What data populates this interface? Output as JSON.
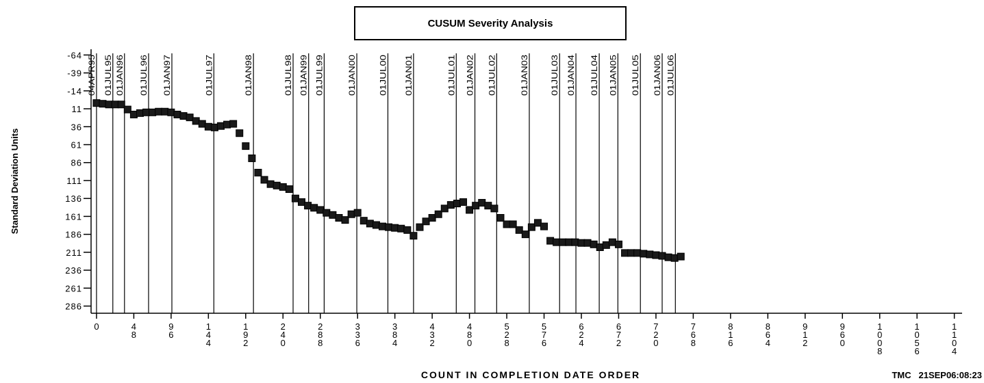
{
  "chart_data": {
    "type": "scatter",
    "title": "CUSUM Severity Analysis",
    "xlabel": "COUNT IN COMPLETION DATE ORDER",
    "ylabel": "Standard Deviation Units",
    "footnote": "TMC   21SEP06:08:23",
    "color": "#1a1a1a",
    "yreverse": true,
    "xlim": [
      -7,
      1114
    ],
    "ylim": [
      -72,
      296
    ],
    "xticks": [
      0,
      48,
      96,
      144,
      192,
      240,
      288,
      336,
      384,
      432,
      480,
      528,
      576,
      624,
      672,
      720,
      768,
      816,
      864,
      912,
      960,
      1008,
      1056,
      1104
    ],
    "yticks": [
      -64,
      -39,
      -14,
      11,
      36,
      61,
      86,
      111,
      136,
      161,
      186,
      211,
      236,
      261,
      286
    ],
    "reference_lines": [
      {
        "value": 0,
        "label": "04APR95"
      },
      {
        "value": 21,
        "label": "01JUL95"
      },
      {
        "value": 36,
        "label": "01JAN96"
      },
      {
        "value": 67,
        "label": "01JUL96"
      },
      {
        "value": 97,
        "label": "01JAN97"
      },
      {
        "value": 151,
        "label": "01JUL97"
      },
      {
        "value": 202,
        "label": "01JAN98"
      },
      {
        "value": 253,
        "label": "01JUL98"
      },
      {
        "value": 273,
        "label": "01JAN99"
      },
      {
        "value": 293,
        "label": "01JUL99"
      },
      {
        "value": 335,
        "label": "01JAN00"
      },
      {
        "value": 375,
        "label": "01JUL00"
      },
      {
        "value": 408,
        "label": "01JAN01"
      },
      {
        "value": 463,
        "label": "01JUL01"
      },
      {
        "value": 487,
        "label": "01JAN02"
      },
      {
        "value": 515,
        "label": "01JUL02"
      },
      {
        "value": 557,
        "label": "01JAN03"
      },
      {
        "value": 596,
        "label": "01JUL03"
      },
      {
        "value": 617,
        "label": "01JAN04"
      },
      {
        "value": 647,
        "label": "01JUL04"
      },
      {
        "value": 671,
        "label": "01JAN05"
      },
      {
        "value": 700,
        "label": "01JUL05"
      },
      {
        "value": 728,
        "label": "01JAN06"
      },
      {
        "value": 745,
        "label": "01JUL06"
      }
    ],
    "x": [
      0,
      8,
      16,
      24,
      32,
      40,
      48,
      56,
      64,
      72,
      80,
      88,
      96,
      104,
      112,
      120,
      128,
      136,
      144,
      152,
      160,
      168,
      176,
      184,
      192,
      200,
      208,
      216,
      224,
      232,
      240,
      248,
      256,
      264,
      272,
      280,
      288,
      296,
      304,
      312,
      320,
      328,
      336,
      344,
      352,
      360,
      368,
      376,
      384,
      392,
      400,
      408,
      416,
      424,
      432,
      440,
      448,
      456,
      464,
      472,
      480,
      488,
      496,
      504,
      512,
      520,
      528,
      536,
      544,
      552,
      560,
      568,
      576,
      584,
      592,
      600,
      608,
      616,
      624,
      632,
      640,
      648,
      656,
      664,
      672,
      680,
      688,
      696,
      704,
      712,
      720,
      728,
      736,
      744,
      752
    ],
    "values": [
      3,
      4,
      5,
      5,
      5,
      12,
      19,
      17,
      16,
      16,
      15,
      15,
      16,
      19,
      21,
      23,
      28,
      32,
      36,
      37,
      35,
      33,
      32,
      45,
      63,
      80,
      100,
      110,
      116,
      118,
      120,
      123,
      136,
      141,
      146,
      149,
      152,
      156,
      159,
      163,
      166,
      158,
      156,
      167,
      171,
      173,
      175,
      176,
      177,
      178,
      180,
      188,
      176,
      168,
      163,
      158,
      150,
      145,
      143,
      141,
      152,
      146,
      142,
      146,
      150,
      163,
      172,
      172,
      180,
      186,
      176,
      170,
      175,
      195,
      197,
      197,
      197,
      197,
      198,
      198,
      200,
      204,
      201,
      197,
      200,
      212,
      212,
      212,
      213,
      214,
      215,
      216,
      218,
      219,
      217
    ]
  }
}
